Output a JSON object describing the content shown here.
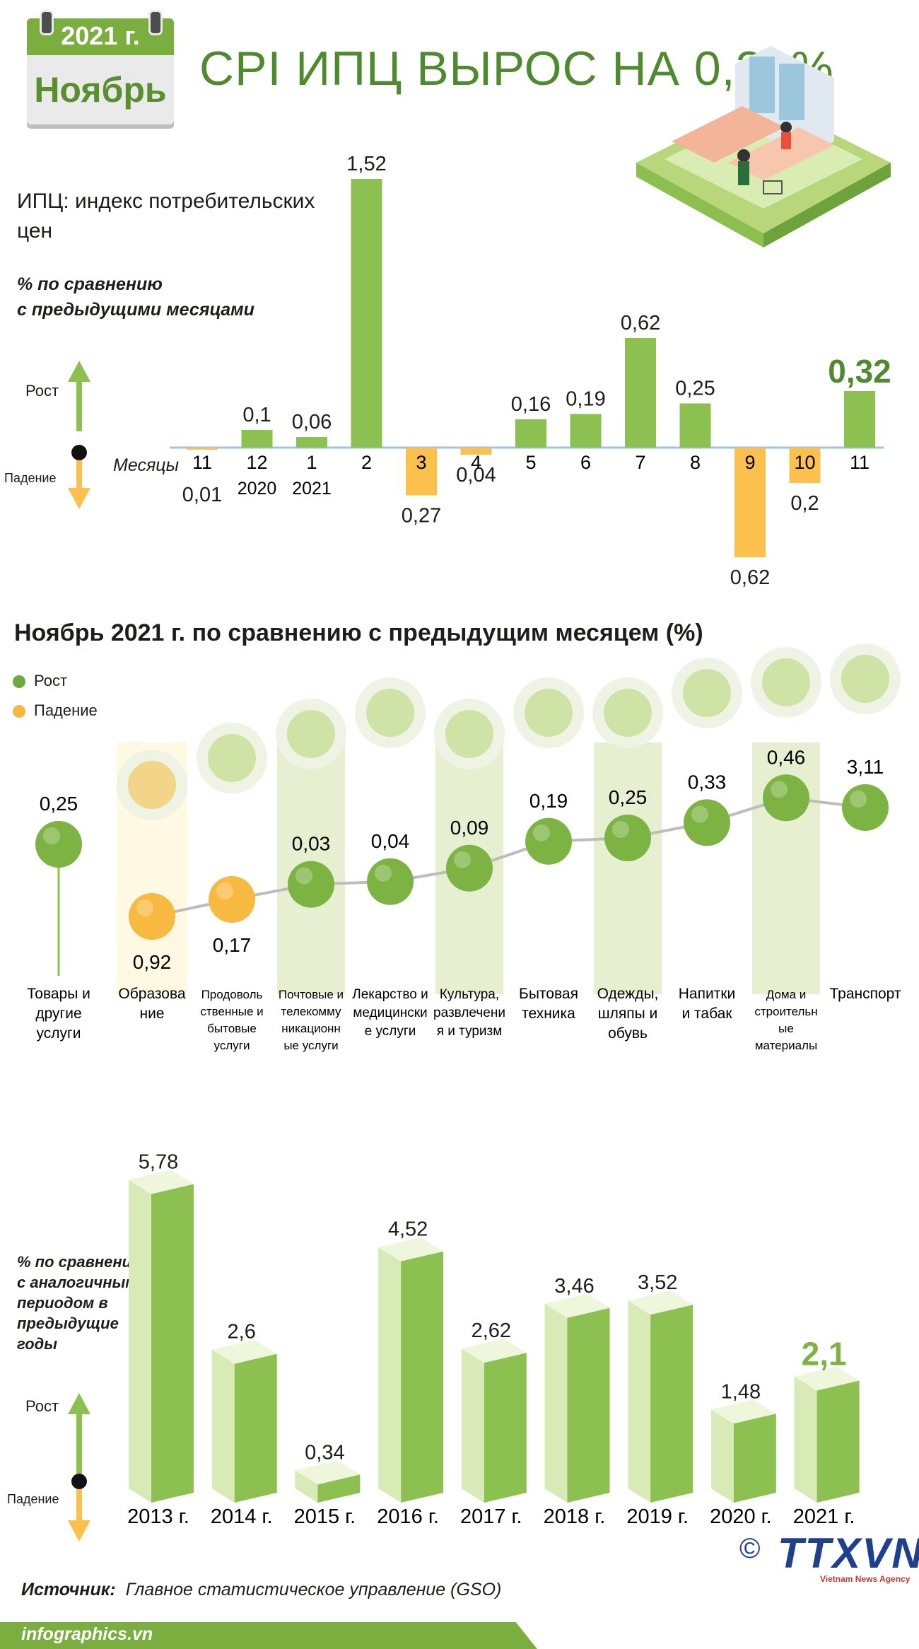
{
  "header": {
    "year": "2021 г.",
    "month": "Ноябрь",
    "title": "CPI ИПЦ ВЫРОС НА 0,32%"
  },
  "colors": {
    "growth": "#8cc152",
    "decline": "#fcc04d",
    "accent": "#4f8a2e",
    "category_highlight": "#e6efd0",
    "education_highlight": "#fff9e3"
  },
  "monthly": {
    "label_line1": "ИПЦ: индекс потребительских",
    "label_line2": "цен",
    "note_line1": "% по сравнению",
    "note_line2": "с предыдущими месяцами",
    "rise": "Рост",
    "fall": "Падение",
    "months_label": "Месяцы"
  },
  "categories_section": {
    "title": "Ноябрь 2021 г. по сравнению с предыдущим месяцем (%)",
    "legend_rise": "Рост",
    "legend_fall": "Падение"
  },
  "annual": {
    "note_line1": "% по сравнению",
    "note_line2": "с аналогичным",
    "note_line3": "периодом в",
    "note_line4": "предыдущие",
    "note_line5": "годы",
    "rise": "Рост",
    "fall": "Падение"
  },
  "footer": {
    "source_label": "Источник:",
    "source_text": "Главное статистическое управление (GSO)",
    "site": "infographics.vn",
    "logo": "TTXVN",
    "logo_sub": "Vietnam News Agency",
    "copyright": "©"
  },
  "chart_data": [
    {
      "type": "bar",
      "categories": [
        "11",
        "12",
        "1",
        "2",
        "3",
        "4",
        "5",
        "6",
        "7",
        "8",
        "9",
        "10",
        "11"
      ],
      "category_sublabels": [
        "",
        "2020",
        "2021",
        "",
        "",
        "",
        "",
        "",
        "",
        "",
        "",
        "",
        ""
      ],
      "values": [
        -0.01,
        0.1,
        0.06,
        1.52,
        -0.27,
        -0.04,
        0.16,
        0.19,
        0.62,
        0.25,
        -0.62,
        -0.2,
        0.32
      ],
      "value_labels": [
        "0,01",
        "0,1",
        "0,06",
        "1,52",
        "0,27",
        "0,04",
        "0,16",
        "0,19",
        "0,62",
        "0,25",
        "0,62",
        "0,2",
        "0,32"
      ],
      "xlabel": "Месяцы"
    },
    {
      "type": "scatter",
      "categories": [
        "Товары и другие услуги",
        "Образование",
        "Продовольственные и бытовые услуги",
        "Почтовые и телекоммуникационные услуги",
        "Лекарство и медицинские услуги",
        "Культура, развлечения и туризм",
        "Бытовая техника",
        "Одежды, шляпы и обувь",
        "Напитки и табак",
        "Дома и строительные материалы",
        "Транспорт"
      ],
      "category_label_lines": [
        [
          "Товары и",
          "другие",
          "услуги"
        ],
        [
          "Образова",
          "ние"
        ],
        [
          "Продоволь",
          "ственные и",
          "бытовые",
          "услуги"
        ],
        [
          "Почтовые и",
          "телекомму",
          "никационн",
          "ые услуги"
        ],
        [
          "Лекарство и",
          "медицински",
          "е услуги"
        ],
        [
          "Культура,",
          "развлечени",
          "я и туризм"
        ],
        [
          "Бытовая",
          "техника"
        ],
        [
          "Одежды,",
          "шляпы и",
          "обувь"
        ],
        [
          "Напитки",
          "и табак"
        ],
        [
          "Дома и",
          "строительн",
          "ые",
          "материалы"
        ],
        [
          "Транспорт"
        ]
      ],
      "values": [
        0.25,
        -0.92,
        -0.17,
        0.03,
        0.04,
        0.09,
        0.19,
        0.25,
        0.33,
        0.46,
        3.11
      ],
      "value_labels": [
        "0,25",
        "0,92",
        "0,17",
        "0,03",
        "0,04",
        "0,09",
        "0,19",
        "0,25",
        "0,33",
        "0,46",
        "3,11"
      ],
      "icons": [
        "",
        "graduation-cap-icon",
        "food-icon",
        "telecom-tower-icon",
        "pill-icon",
        "clapperboard-icon",
        "washing-machine-icon",
        "clothes-shoes-icon",
        "drinks-tobacco-icon",
        "house-icon",
        "traffic-light-icon"
      ]
    },
    {
      "type": "bar",
      "categories": [
        "2013",
        "2014",
        "2015",
        "2016",
        "2017",
        "2018",
        "2019",
        "2020",
        "2021"
      ],
      "category_suffix": "г.",
      "values": [
        5.78,
        2.6,
        0.34,
        4.52,
        2.62,
        3.46,
        3.52,
        1.48,
        2.1
      ],
      "value_labels": [
        "5,78",
        "2,6",
        "0,34",
        "4,52",
        "2,62",
        "3,46",
        "3,52",
        "1,48",
        "2,1"
      ]
    }
  ]
}
